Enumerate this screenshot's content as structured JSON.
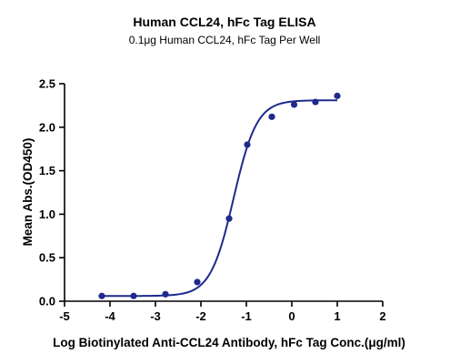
{
  "chart_data": {
    "type": "scatter",
    "title": "Human CCL24, hFc Tag ELISA",
    "subtitle": "0.1μg Human CCL24, hFc Tag Per Well",
    "xlabel": "Log Biotinylated Anti-CCL24 Antibody, hFc Tag Conc.(μg/ml)",
    "ylabel": "Mean Abs.(OD450)",
    "xlim": [
      -5,
      2
    ],
    "ylim": [
      0,
      2.5
    ],
    "xticks": [
      "-5",
      "-4",
      "-3",
      "-2",
      "-1",
      "0",
      "1",
      "2"
    ],
    "yticks": [
      "0.0",
      "0.5",
      "1.0",
      "1.5",
      "2.0",
      "2.5"
    ],
    "grid": false,
    "series": [
      {
        "x": [
          -4.18,
          -3.48,
          -2.78,
          -2.08,
          -1.38,
          -0.98,
          -0.44,
          0.05,
          0.52,
          1.0
        ],
        "y": [
          0.06,
          0.06,
          0.08,
          0.22,
          0.95,
          1.8,
          2.12,
          2.26,
          2.29,
          2.36
        ],
        "fit": {
          "model": "4PL",
          "bottom": 0.06,
          "top": 2.31,
          "logEC50": -1.28,
          "hill": 1.7,
          "range": [
            -4.18,
            1.0
          ]
        },
        "color": "#1f2a8c"
      }
    ]
  }
}
